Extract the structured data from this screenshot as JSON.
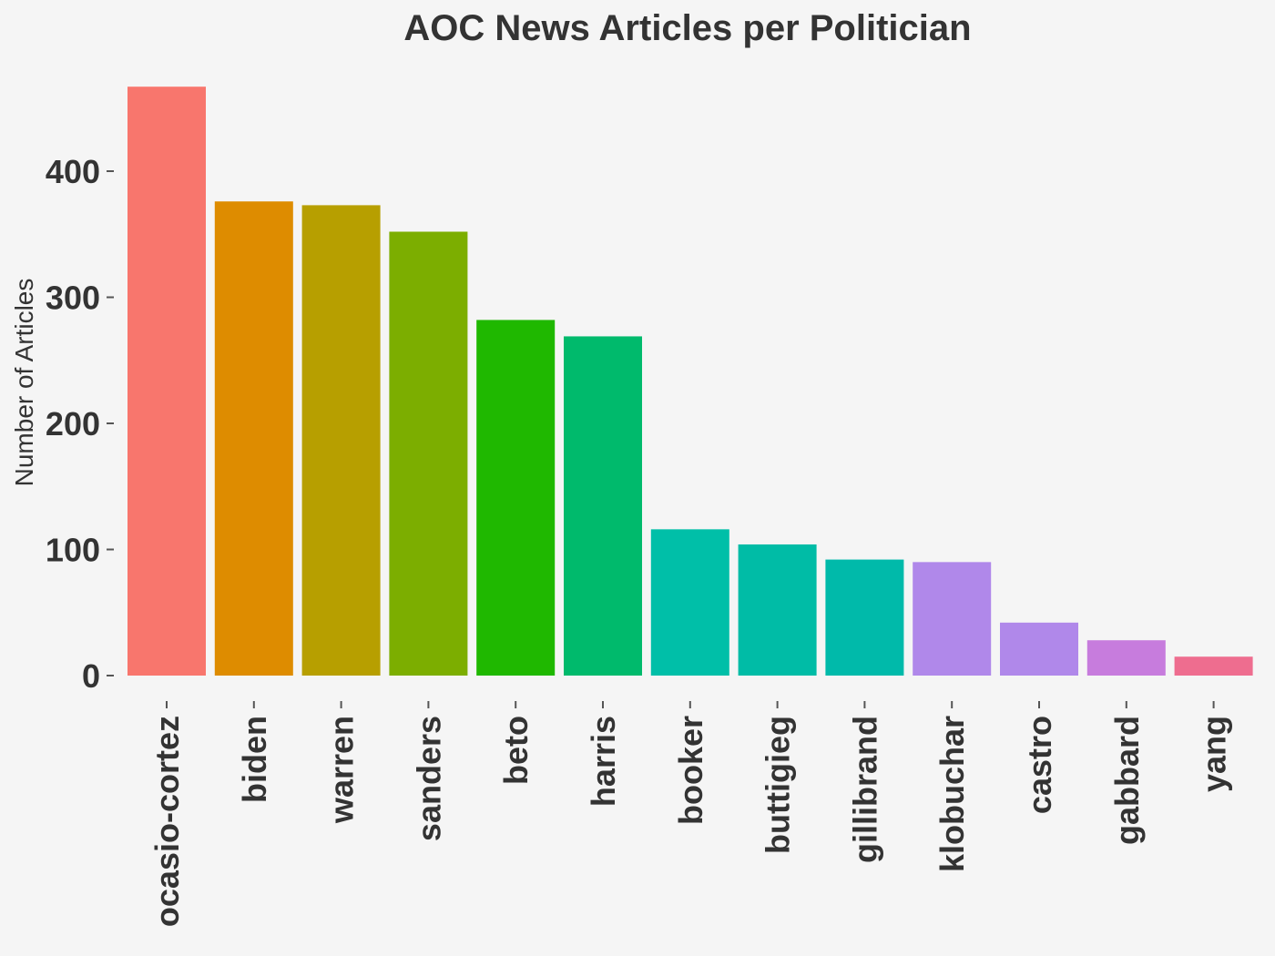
{
  "chart_data": {
    "type": "bar",
    "title": "AOC News Articles per Politician",
    "xlabel": "",
    "ylabel": "Number of Articles",
    "ylim": [
      0,
      470
    ],
    "yticks": [
      0,
      100,
      200,
      300,
      400
    ],
    "grid": false,
    "legend": "none",
    "categories": [
      "ocasio-cortez",
      "biden",
      "warren",
      "sanders",
      "beto",
      "harris",
      "booker",
      "buttigieg",
      "gillibrand",
      "klobuchar",
      "castro",
      "gabbard",
      "yang"
    ],
    "values": [
      467,
      376,
      373,
      352,
      282,
      269,
      116,
      104,
      92,
      90,
      42,
      28,
      15
    ],
    "colors": [
      "#F8766D",
      "#DE8C00",
      "#B79F00",
      "#7CAE00",
      "#1FB800",
      "#00BA6C",
      "#00BFA8",
      "#00BCA6",
      "#00BAAA",
      "#B088EA",
      "#B088EA",
      "#C77CDD",
      "#EE6D8F"
    ]
  }
}
